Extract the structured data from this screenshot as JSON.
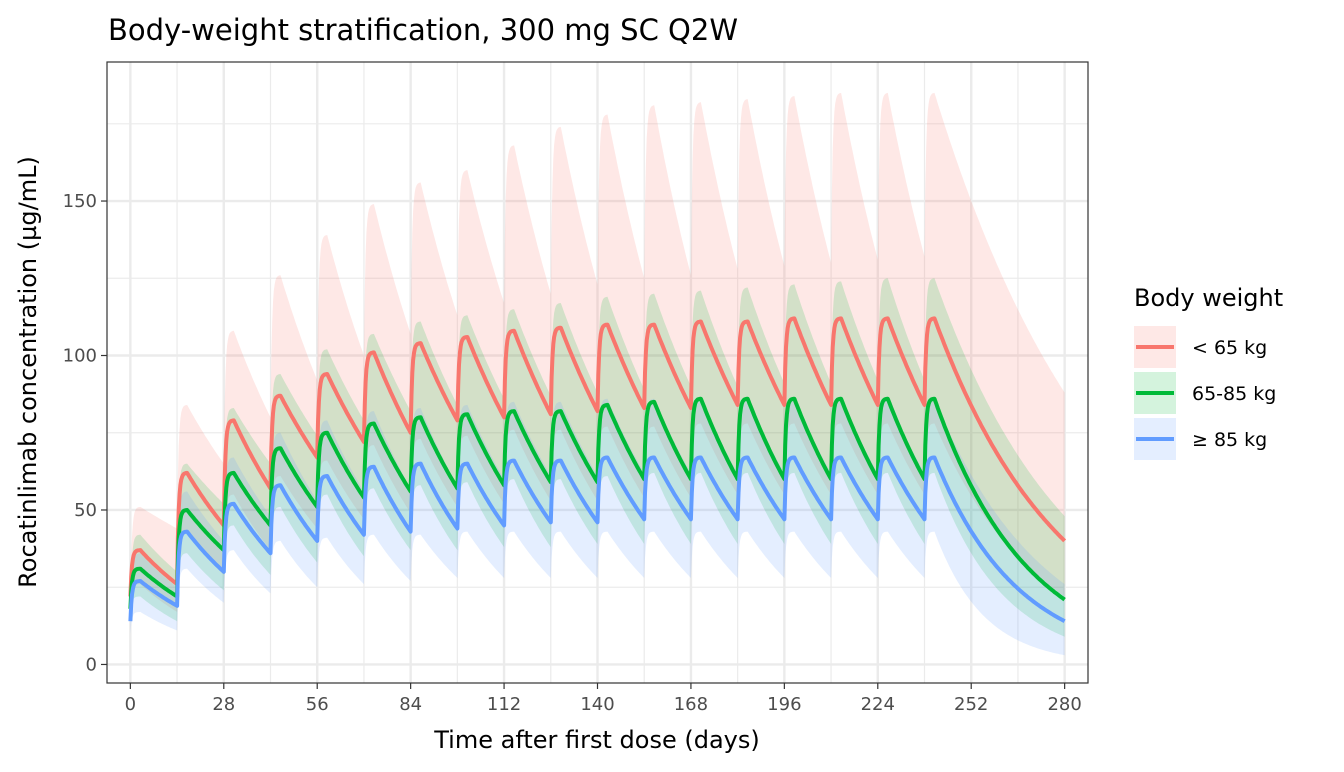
{
  "chart_data": {
    "type": "line",
    "title": "Body-weight stratification, 300 mg SC Q2W",
    "xlabel": "Time after first dose (days)",
    "ylabel": "Rocatinlimab concentration (µg/mL)",
    "xlim": [
      -7,
      287
    ],
    "ylim": [
      -6,
      195
    ],
    "xticks": [
      0,
      28,
      56,
      84,
      112,
      140,
      168,
      196,
      224,
      252,
      280
    ],
    "yticks": [
      0,
      50,
      100,
      150
    ],
    "grid": true,
    "legend": {
      "title": "Body weight",
      "position": "right"
    },
    "dose_days": [
      0,
      14,
      28,
      42,
      56,
      70,
      84,
      98,
      112,
      126,
      140,
      154,
      168,
      182,
      196,
      210,
      224,
      238
    ],
    "peak_offset_days": 3,
    "end_day": 280,
    "series": [
      {
        "name": "< 65 kg",
        "color": "#F8766D",
        "median": {
          "start": 22,
          "peaks": [
            37,
            62,
            79,
            87,
            94,
            101,
            104,
            106,
            108,
            109,
            110,
            110,
            111,
            111,
            112,
            112,
            112,
            112
          ],
          "troughs": [
            26,
            45,
            57,
            67,
            72,
            75,
            79,
            80,
            81,
            82,
            83,
            83,
            84,
            84,
            84,
            84,
            84
          ],
          "end": 40
        },
        "upper": {
          "start": 22,
          "peaks": [
            51,
            84,
            108,
            126,
            139,
            149,
            156,
            160,
            168,
            174,
            178,
            181,
            182,
            183,
            184,
            185,
            185,
            185
          ],
          "troughs": [
            44,
            65,
            80,
            92,
            100,
            107,
            113,
            117,
            120,
            123,
            125,
            126,
            128,
            129,
            130,
            131,
            132
          ],
          "end": 88
        },
        "lower": {
          "start": 20,
          "peaks": [
            26,
            43,
            55,
            61,
            66,
            71,
            73,
            74,
            76,
            76,
            77,
            77,
            78,
            78,
            78,
            78,
            78,
            78
          ],
          "troughs": [
            17,
            29,
            37,
            44,
            47,
            49,
            51,
            52,
            53,
            53,
            54,
            54,
            55,
            55,
            55,
            55,
            55
          ],
          "end": 22
        }
      },
      {
        "name": "65-85 kg",
        "color": "#00BA38",
        "median": {
          "start": 18,
          "peaks": [
            31,
            50,
            62,
            70,
            75,
            78,
            80,
            81,
            82,
            82,
            84,
            85,
            86,
            86,
            86,
            86,
            86,
            86
          ],
          "troughs": [
            22,
            37,
            45,
            51,
            54,
            56,
            57,
            58,
            59,
            59,
            60,
            60,
            60,
            60,
            60,
            60,
            60
          ],
          "end": 21
        },
        "upper": {
          "start": 20,
          "peaks": [
            42,
            65,
            83,
            94,
            102,
            107,
            111,
            113,
            115,
            117,
            119,
            120,
            121,
            122,
            123,
            124,
            125,
            125
          ],
          "troughs": [
            30,
            52,
            65,
            74,
            79,
            82,
            84,
            86,
            87,
            88,
            89,
            90,
            90,
            91,
            91,
            92,
            92
          ],
          "end": 48
        },
        "lower": {
          "start": 16,
          "peaks": [
            22,
            36,
            45,
            51,
            55,
            57,
            58,
            59,
            60,
            60,
            61,
            62,
            62,
            62,
            62,
            62,
            62,
            62
          ],
          "troughs": [
            14,
            24,
            29,
            33,
            35,
            37,
            37,
            38,
            38,
            39,
            39,
            39,
            39,
            39,
            39,
            39,
            39
          ],
          "end": 9
        }
      },
      {
        "name": "≥ 85 kg",
        "color": "#619CFF",
        "median": {
          "start": 14,
          "peaks": [
            27,
            43,
            52,
            58,
            61,
            64,
            65,
            65,
            66,
            66,
            67,
            67,
            67,
            67,
            67,
            67,
            67,
            67
          ],
          "troughs": [
            19,
            30,
            36,
            40,
            42,
            43,
            44,
            45,
            46,
            46,
            47,
            47,
            47,
            47,
            47,
            47,
            47
          ],
          "end": 14
        },
        "upper": {
          "start": 16,
          "peaks": [
            36,
            56,
            67,
            75,
            79,
            82,
            83,
            84,
            85,
            85,
            86,
            86,
            86,
            86,
            86,
            86,
            86,
            86
          ],
          "troughs": [
            25,
            40,
            48,
            53,
            56,
            57,
            58,
            60,
            61,
            61,
            62,
            62,
            62,
            62,
            62,
            62,
            62
          ],
          "end": 26
        },
        "lower": {
          "start": 10,
          "peaks": [
            17,
            31,
            37,
            40,
            41,
            42,
            42,
            43,
            43,
            43,
            43,
            43,
            43,
            43,
            43,
            43,
            43,
            43
          ],
          "troughs": [
            11,
            20,
            23,
            25,
            26,
            27,
            28,
            28,
            28,
            28,
            28,
            28,
            28,
            28,
            28,
            28,
            28
          ],
          "end": 3
        }
      }
    ]
  }
}
